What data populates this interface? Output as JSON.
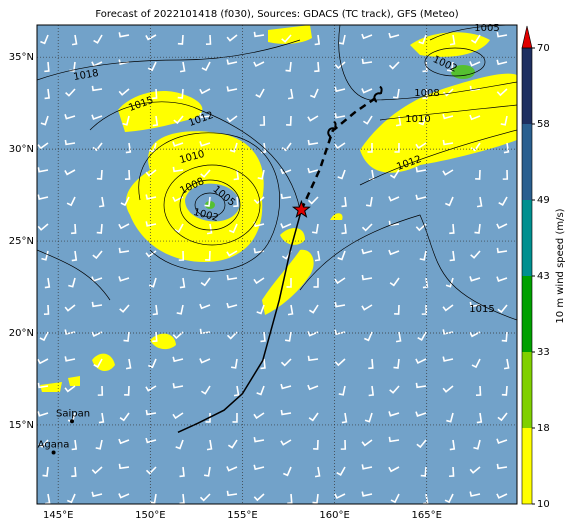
{
  "title": "Forecast of 2022101418 (f030), Sources: GDACS (TC track), GFS (Meteo)",
  "lon_range": [
    143.85,
    169.9
  ],
  "lat_range": [
    10.7,
    36.75
  ],
  "lon_ticks": [
    {
      "value": 145,
      "label": "145°E"
    },
    {
      "value": 150,
      "label": "150°E"
    },
    {
      "value": 155,
      "label": "155°E"
    },
    {
      "value": 160,
      "label": "160°E"
    },
    {
      "value": 165,
      "label": "165°E"
    }
  ],
  "lat_ticks": [
    {
      "value": 15,
      "label": "15°N"
    },
    {
      "value": 20,
      "label": "20°N"
    },
    {
      "value": 25,
      "label": "25°N"
    },
    {
      "value": 30,
      "label": "30°N"
    },
    {
      "value": 35,
      "label": "35°N"
    }
  ],
  "track": {
    "lon": [
      151.5,
      152.6,
      154.0,
      155.0,
      156.1,
      157.0,
      157.6,
      158.2
    ],
    "lat": [
      14.6,
      15.1,
      15.8,
      16.7,
      18.5,
      21.8,
      24.5,
      26.7
    ]
  },
  "forecast": {
    "lon": [
      159.2,
      159.9,
      161.1,
      162.4
    ],
    "lat": [
      28.9,
      31.0,
      32.0,
      32.9
    ]
  },
  "places": [
    {
      "name": "Saipan",
      "lon": 145.75,
      "lat": 15.2
    },
    {
      "name": "Agana",
      "lon": 144.75,
      "lat": 13.5
    }
  ],
  "contour_labels": [
    "1018",
    "1015",
    "1012",
    "1010",
    "1008",
    "1005",
    "1002",
    "1005",
    "1002",
    "1008",
    "1010",
    "1012",
    "1015"
  ],
  "colorbar": {
    "label": "10 m wind speed (m/s)",
    "ticks": [
      10,
      18,
      33,
      43,
      49,
      58,
      70
    ],
    "colors": [
      "#ffff00",
      "#80d000",
      "#00a000",
      "#009090",
      "#2a5f8f",
      "#1e2f60"
    ],
    "extend_color": "#e00000"
  }
}
